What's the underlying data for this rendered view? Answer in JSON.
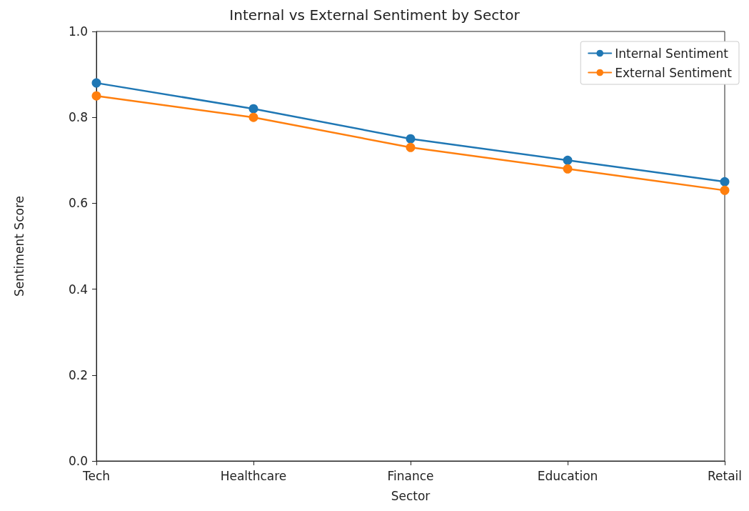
{
  "chart_data": {
    "type": "line",
    "title": "Internal vs External Sentiment by Sector",
    "xlabel": "Sector",
    "ylabel": "Sentiment Score",
    "categories": [
      "Tech",
      "Healthcare",
      "Finance",
      "Education",
      "Retail"
    ],
    "series": [
      {
        "name": "Internal Sentiment",
        "color": "#1f77b4",
        "values": [
          0.88,
          0.82,
          0.75,
          0.7,
          0.65
        ]
      },
      {
        "name": "External Sentiment",
        "color": "#ff7f0e",
        "values": [
          0.85,
          0.8,
          0.73,
          0.68,
          0.63
        ]
      }
    ],
    "ylim": [
      0,
      1
    ],
    "yticks": [
      {
        "value": 0,
        "label": "0.0"
      },
      0.2,
      0.4,
      0.6,
      0.8,
      {
        "value": 1,
        "label": "1.0"
      }
    ],
    "grid": false,
    "legend": "top right",
    "marker": "circle",
    "line_style": "solid"
  }
}
